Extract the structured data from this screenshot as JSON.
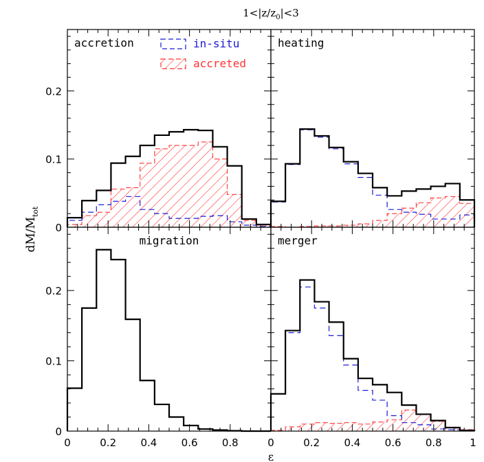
{
  "figure": {
    "title_main": "1<|z/z",
    "title_sub": "0",
    "title_end": "|<3",
    "ylabel_main": "dM/M",
    "ylabel_sub": "tot",
    "xlabel": "ε"
  },
  "colors": {
    "total": "#000000",
    "insitu": "#1a1ad6",
    "accreted": "#ff3333"
  },
  "legend": {
    "insitu": "in-situ",
    "accreted": "accreted"
  },
  "chart_data": [
    {
      "type": "histogram",
      "panel": "accretion",
      "title": "accretion",
      "xlim": [
        0,
        1
      ],
      "ylim": [
        0,
        0.29
      ],
      "bin_edges": [
        0,
        0.0714,
        0.1429,
        0.2143,
        0.2857,
        0.3571,
        0.4286,
        0.5,
        0.5714,
        0.6429,
        0.7143,
        0.7857,
        0.8571,
        0.9286,
        1.0
      ],
      "series": [
        {
          "key": "total",
          "values": [
            0.014,
            0.039,
            0.054,
            0.094,
            0.104,
            0.12,
            0.135,
            0.14,
            0.143,
            0.142,
            0.118,
            0.09,
            0.012,
            0.004
          ],
          "style": "solid"
        },
        {
          "key": "insitu",
          "name": "in-situ",
          "values": [
            0.01,
            0.022,
            0.033,
            0.038,
            0.045,
            0.026,
            0.02,
            0.013,
            0.013,
            0.016,
            0.017,
            0.008,
            0.003,
            0.001
          ],
          "style": "dashed"
        },
        {
          "key": "accreted",
          "name": "accreted",
          "values": [
            0.004,
            0.017,
            0.022,
            0.056,
            0.058,
            0.094,
            0.115,
            0.12,
            0.12,
            0.125,
            0.1,
            0.048,
            0.01,
            0.003
          ],
          "style": "hatched"
        }
      ],
      "yticks": [
        0,
        0.1,
        0.2
      ],
      "ytick_labels": [
        "0",
        "0.1",
        "0.2"
      ],
      "xtick_labels": []
    },
    {
      "type": "histogram",
      "panel": "heating",
      "title": "heating",
      "xlim": [
        0,
        1
      ],
      "ylim": [
        0,
        0.29
      ],
      "bin_edges": [
        0,
        0.0714,
        0.1429,
        0.2143,
        0.2857,
        0.3571,
        0.4286,
        0.5,
        0.5714,
        0.6429,
        0.7143,
        0.7857,
        0.8571,
        0.9286,
        1.0
      ],
      "series": [
        {
          "key": "total",
          "values": [
            0.038,
            0.093,
            0.144,
            0.134,
            0.117,
            0.096,
            0.079,
            0.058,
            0.046,
            0.053,
            0.056,
            0.06,
            0.064,
            0.04
          ],
          "style": "solid"
        },
        {
          "key": "insitu",
          "values": [
            0.037,
            0.092,
            0.143,
            0.132,
            0.115,
            0.093,
            0.073,
            0.047,
            0.026,
            0.022,
            0.019,
            0.012,
            0.012,
            0.018
          ],
          "style": "dashed"
        },
        {
          "key": "accreted",
          "values": [
            0.001,
            0.0,
            0.001,
            0.002,
            0.002,
            0.003,
            0.005,
            0.01,
            0.02,
            0.028,
            0.036,
            0.043,
            0.045,
            0.035
          ],
          "style": "hatched"
        }
      ],
      "yticks": [
        0,
        0.1,
        0.2
      ],
      "ytick_labels": [],
      "xtick_labels": []
    },
    {
      "type": "histogram",
      "panel": "migration",
      "title": "migration",
      "xlim": [
        0,
        1
      ],
      "ylim": [
        0,
        0.29
      ],
      "bin_edges": [
        0,
        0.0714,
        0.1429,
        0.2143,
        0.2857,
        0.3571,
        0.4286,
        0.5,
        0.5714,
        0.6429,
        0.7143,
        0.7857,
        0.8571,
        0.9286,
        1.0
      ],
      "series": [
        {
          "key": "total",
          "values": [
            0.061,
            0.175,
            0.258,
            0.244,
            0.159,
            0.072,
            0.038,
            0.02,
            0.008,
            0.003,
            0.0015,
            0.0005,
            0.0,
            0.0
          ],
          "style": "solid"
        }
      ],
      "yticks": [
        0,
        0.1,
        0.2
      ],
      "ytick_labels": [
        "0",
        "0.1",
        "0.2"
      ],
      "xticks": [
        0,
        0.2,
        0.4,
        0.6,
        0.8
      ],
      "xtick_labels": [
        "0",
        "0.2",
        "0.4",
        "0.6",
        "0.8"
      ]
    },
    {
      "type": "histogram",
      "panel": "merger",
      "title": "merger",
      "xlim": [
        0,
        1
      ],
      "ylim": [
        0,
        0.29
      ],
      "bin_edges": [
        0,
        0.0714,
        0.1429,
        0.2143,
        0.2857,
        0.3571,
        0.4286,
        0.5,
        0.5714,
        0.6429,
        0.7143,
        0.7857,
        0.8571,
        0.9286,
        1.0
      ],
      "series": [
        {
          "key": "total",
          "values": [
            0.053,
            0.143,
            0.215,
            0.184,
            0.155,
            0.103,
            0.075,
            0.066,
            0.055,
            0.037,
            0.024,
            0.015,
            0.005,
            0.001
          ],
          "style": "solid"
        },
        {
          "key": "insitu",
          "values": [
            0.053,
            0.14,
            0.205,
            0.175,
            0.136,
            0.094,
            0.058,
            0.044,
            0.022,
            0.012,
            0.009,
            0.003,
            0.002,
            0.001
          ],
          "style": "dashed"
        },
        {
          "key": "accreted",
          "values": [
            0.001,
            0.006,
            0.01,
            0.012,
            0.011,
            0.012,
            0.01,
            0.013,
            0.016,
            0.03,
            0.024,
            0.014,
            0.005,
            0.002
          ],
          "style": "hatched"
        }
      ],
      "yticks": [
        0,
        0.1,
        0.2
      ],
      "ytick_labels": [],
      "xticks": [
        0,
        0.2,
        0.4,
        0.6,
        0.8,
        1
      ],
      "xtick_labels": [
        "0",
        "0.2",
        "0.4",
        "0.6",
        "0.8",
        "1"
      ]
    }
  ]
}
